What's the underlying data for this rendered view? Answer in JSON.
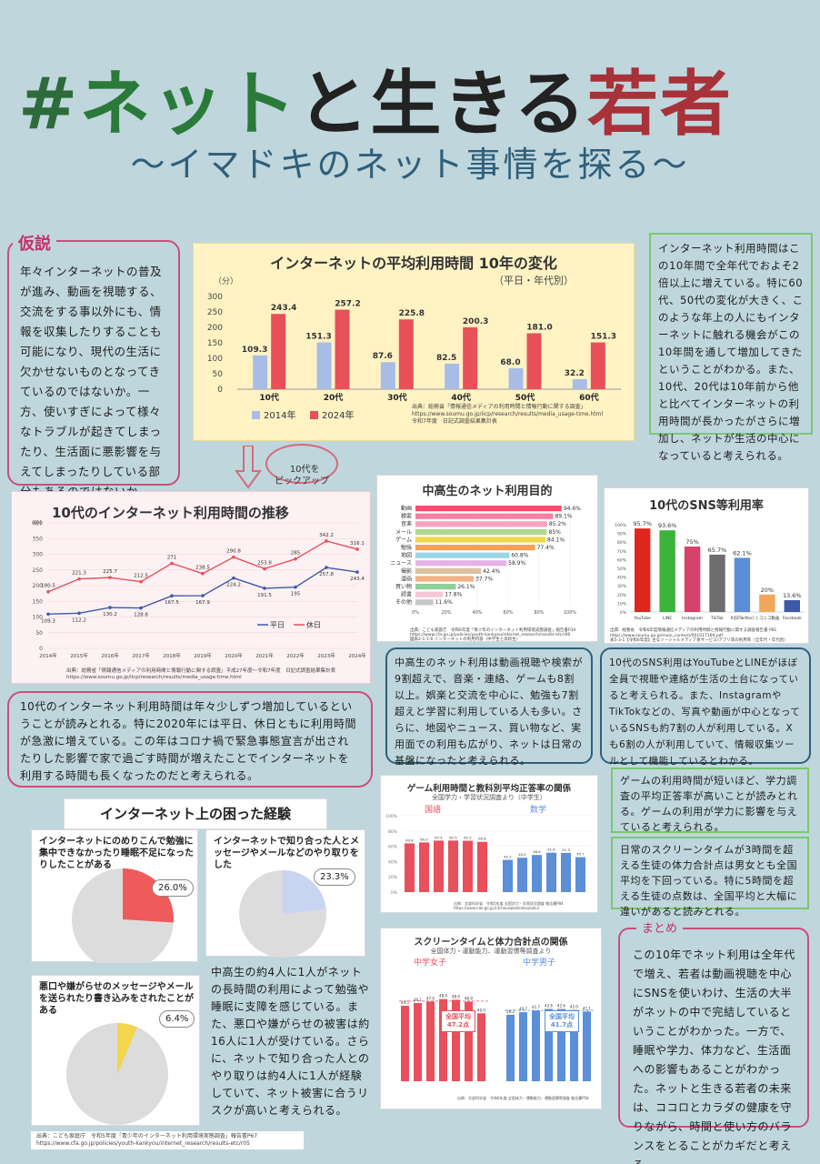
{
  "title": {
    "hash": "#",
    "w1": "ネット",
    "w2": "と",
    "w3": "生きる",
    "w4": "若者"
  },
  "subtitle": "〜イマドキのネット事情を探る〜",
  "hypothesis": {
    "label": "仮説",
    "text": "年々インターネットの普及が進み、動画を視聴する、交流をする事以外にも、情報を収集したりすることも可能になり、現代の生活に欠かせないものとなってきているのではないか。一方、使いすぎによって様々なトラブルが起きてしまったり、生活面に悪影響を与えてしまったりしている部分もあるのではないか。"
  },
  "pickup": "10代を\nピックアップ",
  "chart1": {
    "title": "インターネットの平均利用時間 10年の変化",
    "subtitle": "（平日・年代別）",
    "unit": "（分）",
    "source": "出典：総務省「情報通信メディアの利用時間と情報行動に関する調査」\nhttps://www.soumu.go.jp/iicp/research/results/media_usage-time.html\n令和7年度　日記式調査結果集計表"
  },
  "note1": "インターネット利用時間はこの10年間で全年代でおよそ2倍以上に増えている。特に60代、50代の変化が大きく、このような年上の人にもインターネットに触れる機会がこの10年間を通して増加してきたということがわかる。また、10代、20代は10年前から他と比べてインターネットの利用時間が長かったがさらに増加し、ネットが生活の中心になっていると考えられる。",
  "chart2": {
    "title": "10代のインターネット利用時間の推移",
    "unit": "(分)",
    "source": "出典：総務省「情報通信メディアの利用時間と情報行動に関する調査」平成27年度〜令和7年度　日記式調査結果集計表\nhttps://www.soumu.go.jp/iicp/research/results/media_usage-time.html"
  },
  "note2": "10代のインターネット利用時間は年々少しずつ増加しているということが読みとれる。特に2020年には平日、休日ともに利用時間が急激に増えている。この年はコロナ禍で緊急事態宣言が出されたりした影響で家で過ごす時間が増えたことでインターネットを利用する時間も長くなったのだと考えられる。",
  "chart3": {
    "title": "中高生のネット利用目的",
    "source": "出典：こども家庭庁　令和6年度「青少年のインターネット利用環境実態調査」報告書P34\nhttps://www.cfa.go.jp/policies/youth-kankyou/internet_research/results-etc/r06\n図表2-1-1-6 インターネットの利用内容（中学生と高校生）"
  },
  "note3": "中高生のネット利用は動画視聴や検索が9割超えで、音楽・連絡、ゲームも8割以上。娯楽と交流を中心に、勉強も7割超えと学習に利用している人も多い。さらに、地図やニュース、買い物など、実用面での利用も広がり、ネットは日常の基盤になったと考えられる。",
  "chart4": {
    "title": "10代のSNS等利用率",
    "source": "出典：総務省　令和6年度情報通信メディアの利用時間と情報行動に関する調査報告書 P81\nhttps://www.soumu.go.jp/main_content/001017169.pdf\n表5-3-1【令和6年度】主なソーシャルメディア系サービス/アプリ等の利用率（全年代・年代別）"
  },
  "note4": "10代のSNS利用はYouTubeとLINEがほぼ全員で視聴や連絡が生活の土台になっていると考えられる。また、InstagramやTikTokなどの、写真や動画が中心となっているSNSも約7割の人が利用している。Xも6割の人が利用していて、情報収集ツールとして機能しているとわかる。",
  "trouble": {
    "title": "インターネット上の困った経験",
    "q1": "インターネットにのめりこんで勉強に集中できなかったり睡眠不足になったりしたことがある",
    "v1": "26.0%",
    "q2": "インターネットで知り合った人とメッセージやメールなどのやり取りをした",
    "v2": "23.3%",
    "q3": "悪口や嫌がらせのメッセージやメールを送られたり書き込みをされたことがある",
    "v3": "6.4%",
    "source": "出典：こども家庭庁　令和5年度「青少年のインターネット利用環境実態調査」報告書P67\nhttps://www.cfa.go.jp/policies/youth-kankyou/internet_research/results-etc/r05"
  },
  "note5": "中高生の約4人に1人がネットの長時間の利用によって勉強や睡眠に支障を感じている。また、悪口や嫌がらせの被害は約16人に1人が受けている。さらに、ネットで知り合った人とのやり取りは約4人に1人が経験していて、ネット被害に合うリスクが高いと考えられる。",
  "chart5": {
    "title": "ゲーム利用時間と教科別平均正答率の関係",
    "subtitle": "全国学力・学習状況調査より（中学生）",
    "left": "国語",
    "right": "数学",
    "source": "出典：文部科学省　令和5年度 全国学力・学習状況調査 報告書P84\nhttps://www.nier.go.jp/23chousakekkahoukoku/"
  },
  "note6": "ゲームの利用時間が短いほど、学力調査の平均正答率が高いことが読みとれる。ゲームの利用が学力に影響を与えていると考えられる。",
  "chart6": {
    "title": "スクリーンタイムと体力合計点の関係",
    "subtitle": "全国体力・運動能力、運動習慣等調査より",
    "left": "中学女子",
    "right": "中学男子",
    "avgL": "全国平均\n47.2点",
    "avgR": "全国平均\n41.7点",
    "source": "出典：文部科学省　令和6年度 全国体力・運動能力、運動習慣等調査 報告書P58"
  },
  "note7": "日常のスクリーンタイムが3時間を超える生徒の体力合計点は男女とも全国平均を下回っている。特に5時間を超える生徒の点数は、全国平均と大幅に違いがあると読みとれる。",
  "summary": {
    "label": "まとめ",
    "text": "この10年でネット利用は全年代で増え、若者は動画視聴を中心にSNSを使いわけ、生活の大半がネットの中で完結しているということがわかった。一方で、睡眠や学力、体力など、生活面への影響もあることがわかった。ネットと生きる若者の未来は、ココロとカラダの健康を守りながら、時間と使い方のバランスをとることがカギだと考える。"
  },
  "chart_data": [
    {
      "type": "bar",
      "categories": [
        "10代",
        "20代",
        "30代",
        "40代",
        "50代",
        "60代"
      ],
      "series": [
        {
          "name": "2014年",
          "values": [
            109.3,
            151.3,
            87.6,
            82.5,
            68.0,
            32.2
          ]
        },
        {
          "name": "2024年",
          "values": [
            243.4,
            257.2,
            225.8,
            200.3,
            181.0,
            151.3
          ]
        }
      ],
      "ylim": [
        0,
        300
      ],
      "ticks": [
        0,
        50,
        100,
        150,
        200,
        250,
        300
      ],
      "legend": "bottom",
      "colors": [
        "#a8bde6",
        "#e8505b"
      ]
    },
    {
      "type": "line",
      "categories": [
        "2014年",
        "2015年",
        "2016年",
        "2017年",
        "2018年",
        "2019年",
        "2020年",
        "2021年",
        "2022年",
        "2023年",
        "2024年"
      ],
      "series": [
        {
          "name": "平日",
          "values": [
            109.3,
            112.2,
            130.2,
            128.8,
            167.5,
            167.9,
            224.2,
            191.5,
            195.0,
            257.8,
            243.4
          ]
        },
        {
          "name": "休日",
          "values": [
            180.5,
            221.3,
            225.7,
            212.5,
            271,
            238.5,
            290.8,
            253.8,
            285,
            342.2,
            316.1
          ]
        }
      ],
      "ylim": [
        0,
        400
      ],
      "ticks": [
        0,
        50,
        100,
        150,
        200,
        250,
        300,
        350,
        400
      ],
      "colors": [
        "#3a5ba8",
        "#e8505b"
      ]
    },
    {
      "type": "bar",
      "orientation": "horizontal",
      "categories": [
        "動画",
        "検索",
        "音楽",
        "メール",
        "ゲーム",
        "勉強",
        "地図",
        "ニュース",
        "撮影",
        "漫画",
        "買い物",
        "読書",
        "その他"
      ],
      "values": [
        94.6,
        89.1,
        85.2,
        85.0,
        84.1,
        77.4,
        60.8,
        58.9,
        42.4,
        37.7,
        26.1,
        17.8,
        11.6
      ],
      "xlim": [
        0,
        100
      ],
      "ticks": [
        "0%",
        "20%",
        "40%",
        "60%",
        "80%",
        "100%"
      ],
      "colors": [
        "#f0506e",
        "#f67fa2",
        "#f6a4c1",
        "#b0d98f",
        "#f2d64b",
        "#f6a05a",
        "#9ad4e8",
        "#e6b2e6",
        "#d7c3a1",
        "#f4b183",
        "#8fcf9a",
        "#f8c6d8",
        "#c8c8c8"
      ]
    },
    {
      "type": "bar",
      "categories": [
        "YouTube",
        "LINE",
        "Instagram",
        "TikTok",
        "X(旧Twitter)",
        "ニコニコ動画",
        "Facebook"
      ],
      "values": [
        95.7,
        93.6,
        75.0,
        65.7,
        62.1,
        20.0,
        13.6
      ],
      "ylim": [
        0,
        100
      ],
      "ticks": [
        "0%",
        "10%",
        "20%",
        "30%",
        "40%",
        "50%",
        "60%",
        "70%",
        "80%",
        "90%",
        "100%"
      ],
      "colors": [
        "#e0261f",
        "#3cb33c",
        "#d6426a",
        "#6e6e6e",
        "#5a8fd8",
        "#f2a65a",
        "#3d5aa8"
      ]
    },
    {
      "type": "bar",
      "panels": [
        {
          "name": "国語",
          "values": [
            63.8,
            65.0,
            67.4,
            67.5,
            67.2,
            65.8
          ],
          "color": "#e8505b"
        },
        {
          "name": "数学",
          "values": [
            42.2,
            45.0,
            48.6,
            51.6,
            51.3,
            45.7
          ],
          "color": "#5b8fd8"
        }
      ],
      "ylim": [
        0,
        100
      ]
    },
    {
      "type": "bar",
      "panels": [
        {
          "name": "中学女子",
          "values": [
            44.5,
            46.1,
            47.0,
            48.4,
            48.0,
            46.9,
            40.0
          ],
          "color": "#e8505b",
          "avg": 47.2
        },
        {
          "name": "中学男子",
          "values": [
            39.2,
            40.7,
            41.7,
            42.6,
            42.6,
            42.0,
            41.1
          ],
          "color": "#5b8fd8",
          "avg": 41.7
        }
      ],
      "ylim": [
        0,
        60
      ]
    }
  ]
}
